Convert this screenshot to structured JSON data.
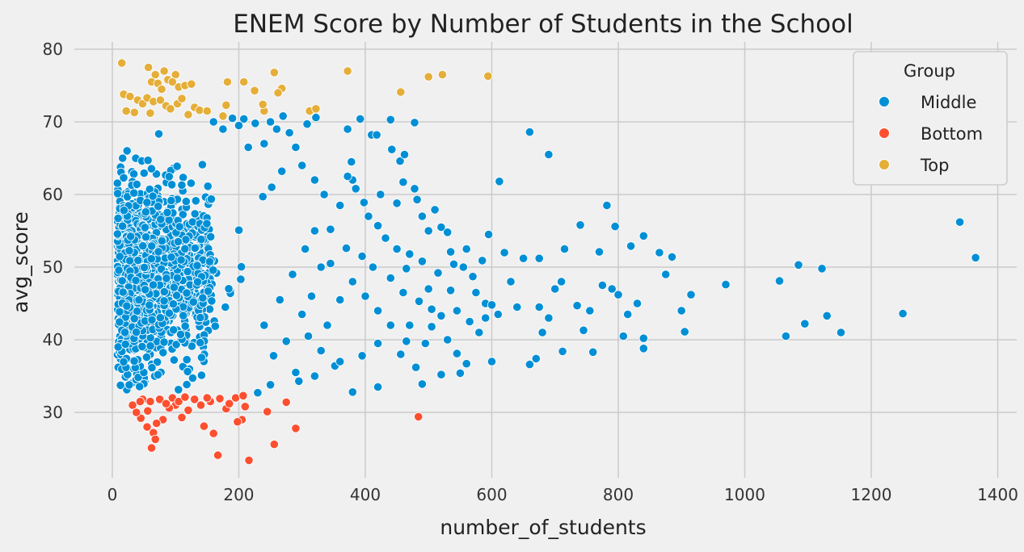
{
  "chart_data": {
    "type": "scatter",
    "title": "ENEM Score by Number of Students in the School",
    "xlabel": "number_of_students",
    "ylabel": "avg_score",
    "xlim": [
      -60,
      1430
    ],
    "ylim": [
      21,
      81
    ],
    "xticks": [
      0,
      200,
      400,
      600,
      800,
      1000,
      1200,
      1400
    ],
    "yticks": [
      30,
      40,
      50,
      60,
      70,
      80
    ],
    "grid": true,
    "legend": {
      "title": "Group",
      "position": "top-right"
    },
    "series": [
      {
        "name": "Middle",
        "color": "#008fd5",
        "density_note_points_sampled": true,
        "points": [
          [
            660,
            68.6
          ],
          [
            690,
            65.5
          ],
          [
            612,
            61.8
          ],
          [
            595,
            54.5
          ],
          [
            585,
            50.9
          ],
          [
            620,
            52.0
          ],
          [
            650,
            51.2
          ],
          [
            675,
            51.2
          ],
          [
            715,
            52.5
          ],
          [
            740,
            55.8
          ],
          [
            782,
            58.5
          ],
          [
            795,
            55.6
          ],
          [
            820,
            52.9
          ],
          [
            840,
            54.3
          ],
          [
            865,
            52.0
          ],
          [
            885,
            51.4
          ],
          [
            875,
            49.0
          ],
          [
            770,
            52.1
          ],
          [
            700,
            47.0
          ],
          [
            710,
            48.0
          ],
          [
            630,
            48.0
          ],
          [
            775,
            47.5
          ],
          [
            790,
            47.0
          ],
          [
            800,
            46.2
          ],
          [
            830,
            45.0
          ],
          [
            815,
            43.5
          ],
          [
            915,
            46.2
          ],
          [
            970,
            47.6
          ],
          [
            1055,
            48.1
          ],
          [
            1085,
            50.3
          ],
          [
            1122,
            49.8
          ],
          [
            1340,
            56.2
          ],
          [
            1365,
            51.3
          ],
          [
            1250,
            43.6
          ],
          [
            1130,
            43.3
          ],
          [
            1095,
            42.2
          ],
          [
            1152,
            41.0
          ],
          [
            1065,
            40.5
          ],
          [
            905,
            41.1
          ],
          [
            900,
            44.0
          ],
          [
            840,
            40.2
          ],
          [
            840,
            38.8
          ],
          [
            808,
            40.5
          ],
          [
            760,
            38.3
          ],
          [
            745,
            41.3
          ],
          [
            755,
            44.0
          ],
          [
            735,
            44.7
          ],
          [
            712,
            38.4
          ],
          [
            680,
            41.0
          ],
          [
            670,
            37.4
          ],
          [
            660,
            36.6
          ],
          [
            675,
            44.5
          ],
          [
            690,
            43.0
          ],
          [
            640,
            44.5
          ],
          [
            600,
            37.0
          ],
          [
            560,
            36.7
          ],
          [
            550,
            35.4
          ],
          [
            520,
            35.2
          ],
          [
            490,
            33.9
          ],
          [
            420,
            33.5
          ],
          [
            380,
            32.8
          ],
          [
            352,
            36.4
          ],
          [
            320,
            35.0
          ],
          [
            290,
            35.5
          ],
          [
            250,
            33.8
          ],
          [
            230,
            32.7
          ],
          [
            295,
            34.3
          ],
          [
            456,
            38.0
          ],
          [
            480,
            36.2
          ],
          [
            372,
            69.0
          ],
          [
            392,
            70.4
          ],
          [
            440,
            70.3
          ],
          [
            478,
            69.9
          ],
          [
            410,
            68.2
          ],
          [
            418,
            68.2
          ],
          [
            442,
            66.2
          ],
          [
            455,
            64.6
          ],
          [
            462,
            65.5
          ],
          [
            378,
            64.5
          ],
          [
            380,
            62.0
          ],
          [
            424,
            60.0
          ],
          [
            450,
            58.8
          ],
          [
            460,
            61.7
          ],
          [
            478,
            60.8
          ],
          [
            482,
            59.3
          ],
          [
            490,
            57.0
          ],
          [
            500,
            55.0
          ],
          [
            510,
            57.9
          ],
          [
            520,
            55.5
          ],
          [
            530,
            54.8
          ],
          [
            535,
            52.1
          ],
          [
            540,
            50.4
          ],
          [
            555,
            50.0
          ],
          [
            560,
            52.5
          ],
          [
            570,
            48.7
          ],
          [
            575,
            46.5
          ],
          [
            590,
            45.0
          ],
          [
            600,
            44.8
          ],
          [
            610,
            43.5
          ],
          [
            580,
            41.0
          ],
          [
            565,
            42.5
          ],
          [
            545,
            44.0
          ],
          [
            520,
            43.3
          ],
          [
            505,
            41.8
          ],
          [
            495,
            39.5
          ],
          [
            465,
            39.8
          ],
          [
            470,
            42.0
          ],
          [
            500,
            47.0
          ],
          [
            515,
            49.2
          ],
          [
            490,
            50.8
          ],
          [
            470,
            51.8
          ],
          [
            450,
            52.5
          ],
          [
            432,
            54.0
          ],
          [
            420,
            55.7
          ],
          [
            405,
            57.0
          ],
          [
            398,
            58.9
          ],
          [
            385,
            60.8
          ],
          [
            372,
            62.5
          ],
          [
            360,
            58.5
          ],
          [
            345,
            55.2
          ],
          [
            335,
            60.0
          ],
          [
            320,
            62.0
          ],
          [
            300,
            64.0
          ],
          [
            290,
            66.5
          ],
          [
            280,
            68.5
          ],
          [
            270,
            70.8
          ],
          [
            260,
            69.0
          ],
          [
            250,
            70.0
          ],
          [
            240,
            67.0
          ],
          [
            226,
            69.8
          ],
          [
            208,
            70.4
          ],
          [
            200,
            69.5
          ],
          [
            190,
            70.5
          ],
          [
            175,
            69.0
          ],
          [
            160,
            70.0
          ],
          [
            308,
            69.7
          ],
          [
            322,
            70.6
          ],
          [
            268,
            63.2
          ],
          [
            252,
            61.0
          ],
          [
            238,
            59.7
          ],
          [
            215,
            66.5
          ],
          [
            330,
            50.0
          ],
          [
            315,
            46.0
          ],
          [
            300,
            43.5
          ],
          [
            310,
            40.5
          ],
          [
            340,
            42.0
          ],
          [
            360,
            45.5
          ],
          [
            380,
            48.0
          ],
          [
            400,
            46.0
          ],
          [
            420,
            44.0
          ],
          [
            440,
            42.0
          ],
          [
            460,
            46.5
          ],
          [
            330,
            38.5
          ],
          [
            360,
            37.0
          ],
          [
            395,
            37.8
          ],
          [
            420,
            39.5
          ],
          [
            275,
            39.8
          ],
          [
            255,
            37.8
          ],
          [
            240,
            42.0
          ],
          [
            265,
            45.5
          ],
          [
            285,
            49.0
          ],
          [
            305,
            52.5
          ],
          [
            320,
            55.0
          ],
          [
            345,
            50.5
          ],
          [
            370,
            52.6
          ],
          [
            395,
            51.5
          ],
          [
            412,
            50.0
          ],
          [
            440,
            48.5
          ],
          [
            465,
            49.8
          ],
          [
            485,
            45.3
          ],
          [
            505,
            44.2
          ],
          [
            530,
            40.0
          ],
          [
            545,
            38.1
          ],
          [
            535,
            46.8
          ],
          [
            590,
            43.0
          ]
        ]
      },
      {
        "name": "Bottom",
        "color": "#fc4f30",
        "points": [
          [
            484,
            29.4
          ],
          [
            290,
            27.8
          ],
          [
            256,
            25.6
          ],
          [
            245,
            30.1
          ],
          [
            275,
            31.4
          ],
          [
            216,
            23.4
          ],
          [
            167,
            24.1
          ],
          [
            160,
            27.1
          ],
          [
            145,
            28.1
          ],
          [
            205,
            29.0
          ],
          [
            198,
            28.7
          ],
          [
            180,
            30.5
          ],
          [
            155,
            31.5
          ],
          [
            130,
            31.8
          ],
          [
            120,
            30.3
          ],
          [
            110,
            29.3
          ],
          [
            100,
            31.0
          ],
          [
            90,
            30.6
          ],
          [
            80,
            29.0
          ],
          [
            70,
            28.5
          ],
          [
            65,
            27.2
          ],
          [
            68,
            26.3
          ],
          [
            62,
            25.1
          ],
          [
            55,
            28.0
          ],
          [
            45,
            29.2
          ],
          [
            38,
            30.0
          ],
          [
            32,
            31.0
          ],
          [
            48,
            31.8
          ],
          [
            60,
            31.5
          ],
          [
            75,
            31.8
          ],
          [
            85,
            31.2
          ],
          [
            95,
            32.0
          ],
          [
            105,
            31.5
          ],
          [
            115,
            32.1
          ],
          [
            140,
            31.0
          ],
          [
            150,
            32.0
          ],
          [
            170,
            31.9
          ],
          [
            185,
            31.2
          ],
          [
            195,
            32.0
          ],
          [
            207,
            32.3
          ],
          [
            210,
            30.8
          ],
          [
            56,
            30.2
          ],
          [
            44,
            31.5
          ]
        ]
      },
      {
        "name": "Top",
        "color": "#e5ae38",
        "points": [
          [
            15,
            78.1
          ],
          [
            57,
            77.5
          ],
          [
            82,
            77.0
          ],
          [
            68,
            76.5
          ],
          [
            100,
            76.5
          ],
          [
            62,
            75.5
          ],
          [
            72,
            75.3
          ],
          [
            88,
            75.8
          ],
          [
            95,
            75.5
          ],
          [
            78,
            74.5
          ],
          [
            105,
            74.8
          ],
          [
            115,
            75.0
          ],
          [
            125,
            75.2
          ],
          [
            18,
            73.8
          ],
          [
            28,
            73.5
          ],
          [
            40,
            73.0
          ],
          [
            48,
            72.5
          ],
          [
            55,
            73.3
          ],
          [
            65,
            72.8
          ],
          [
            76,
            73.0
          ],
          [
            85,
            72.2
          ],
          [
            92,
            71.8
          ],
          [
            103,
            72.5
          ],
          [
            110,
            73.2
          ],
          [
            130,
            72.0
          ],
          [
            138,
            71.6
          ],
          [
            150,
            71.5
          ],
          [
            175,
            70.8
          ],
          [
            35,
            71.3
          ],
          [
            22,
            71.5
          ],
          [
            60,
            71.2
          ],
          [
            120,
            71.0
          ],
          [
            180,
            72.3
          ],
          [
            182,
            75.5
          ],
          [
            208,
            75.5
          ],
          [
            225,
            74.3
          ],
          [
            240,
            71.5
          ],
          [
            238,
            72.4
          ],
          [
            256,
            76.8
          ],
          [
            268,
            74.6
          ],
          [
            262,
            74.0
          ],
          [
            312,
            71.5
          ],
          [
            322,
            71.8
          ],
          [
            372,
            77.0
          ],
          [
            456,
            74.1
          ],
          [
            500,
            76.2
          ],
          [
            522,
            76.5
          ],
          [
            594,
            76.3
          ]
        ]
      }
    ]
  }
}
